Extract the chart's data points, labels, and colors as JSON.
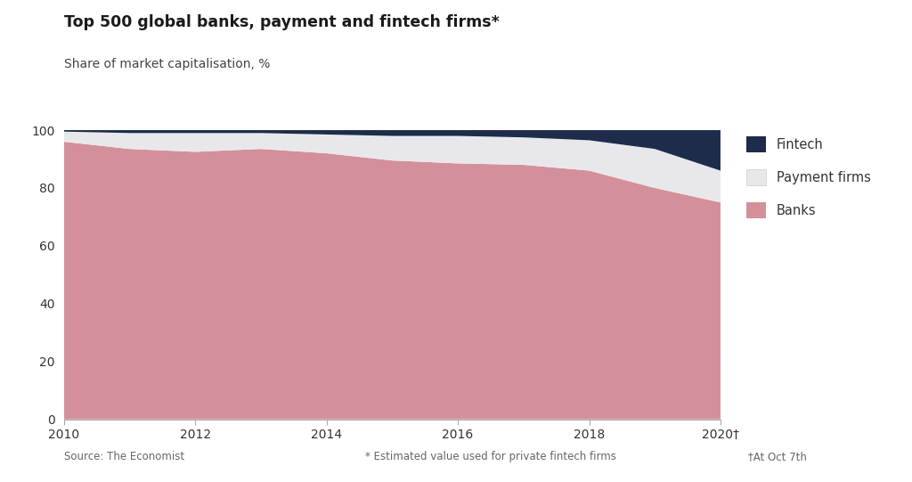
{
  "title": "Top 500 global banks, payment and fintech firms*",
  "subtitle": "Share of market capitalisation, %",
  "source": "Source: The Economist",
  "footnote1": "* Estimated value used for private fintech firms",
  "footnote2": "†At Oct 7th",
  "years": [
    2010,
    2011,
    2012,
    2013,
    2014,
    2015,
    2016,
    2017,
    2018,
    2019,
    2020
  ],
  "banks": [
    96.0,
    93.5,
    92.5,
    93.5,
    92.0,
    89.5,
    88.5,
    88.0,
    86.0,
    80.0,
    75.0
  ],
  "payment_firms": [
    3.5,
    5.5,
    6.5,
    5.5,
    6.5,
    8.5,
    9.5,
    9.5,
    10.5,
    13.5,
    11.0
  ],
  "fintech": [
    0.5,
    1.0,
    1.0,
    1.0,
    1.5,
    2.0,
    2.0,
    2.5,
    3.5,
    6.5,
    14.0
  ],
  "color_banks": "#d4909a",
  "color_payment": "#e8e8ec",
  "color_fintech": "#1c2c4a",
  "bg_color": "#ffffff",
  "ylim": [
    0,
    100
  ],
  "xlim": [
    2010,
    2020
  ],
  "yticks": [
    0,
    20,
    40,
    60,
    80,
    100
  ],
  "xticks": [
    2010,
    2012,
    2014,
    2016,
    2018,
    2020
  ],
  "legend_labels": [
    "Fintech",
    "Payment firms",
    "Banks"
  ]
}
